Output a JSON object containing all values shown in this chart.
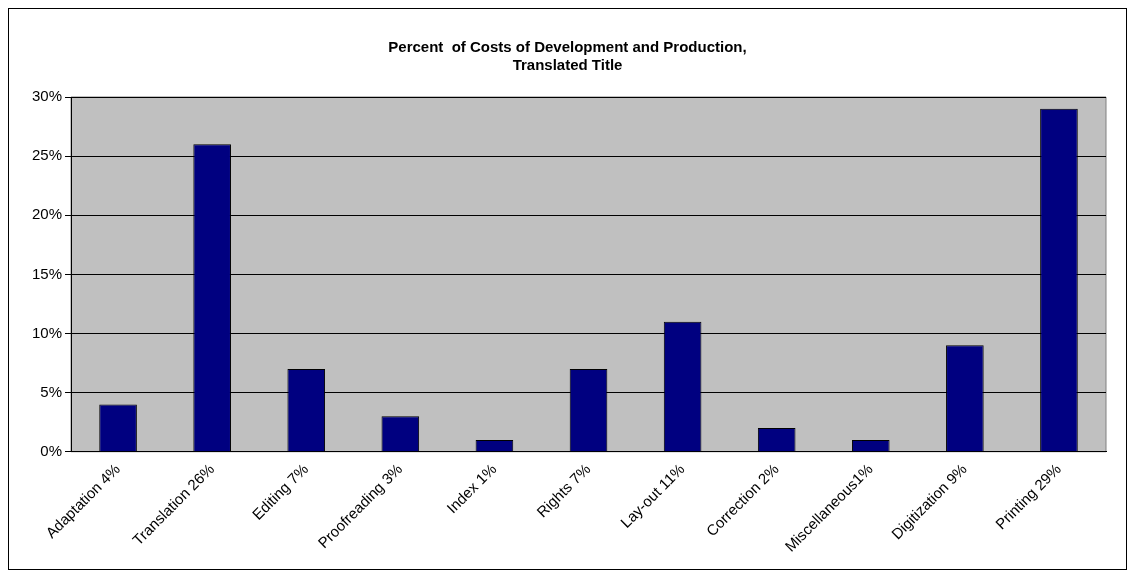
{
  "chart_data": {
    "type": "bar",
    "title": "Percent  of Costs of Development and Production,\nTranslated Title",
    "categories": [
      "Adaptation 4%",
      "Translation 26%",
      "Editing 7%",
      "Proofreading 3%",
      "Index 1%",
      "Rights 7%",
      "Lay-out 11%",
      "Correction 2%",
      "Miscellaneous1%",
      "Digitization 9%",
      "Printing 29%"
    ],
    "values": [
      4,
      26,
      7,
      3,
      1,
      7,
      11,
      2,
      1,
      9,
      29
    ],
    "color": "#000080",
    "ylim": [
      0,
      30
    ],
    "yticks": [
      {
        "value": 0,
        "label": "0%"
      },
      {
        "value": 5,
        "label": "5%"
      },
      {
        "value": 10,
        "label": "10%"
      },
      {
        "value": 15,
        "label": "15%"
      },
      {
        "value": 20,
        "label": "20%"
      },
      {
        "value": 25,
        "label": "25%"
      },
      {
        "value": 30,
        "label": "30%"
      }
    ],
    "grid": "y",
    "legend": false
  }
}
